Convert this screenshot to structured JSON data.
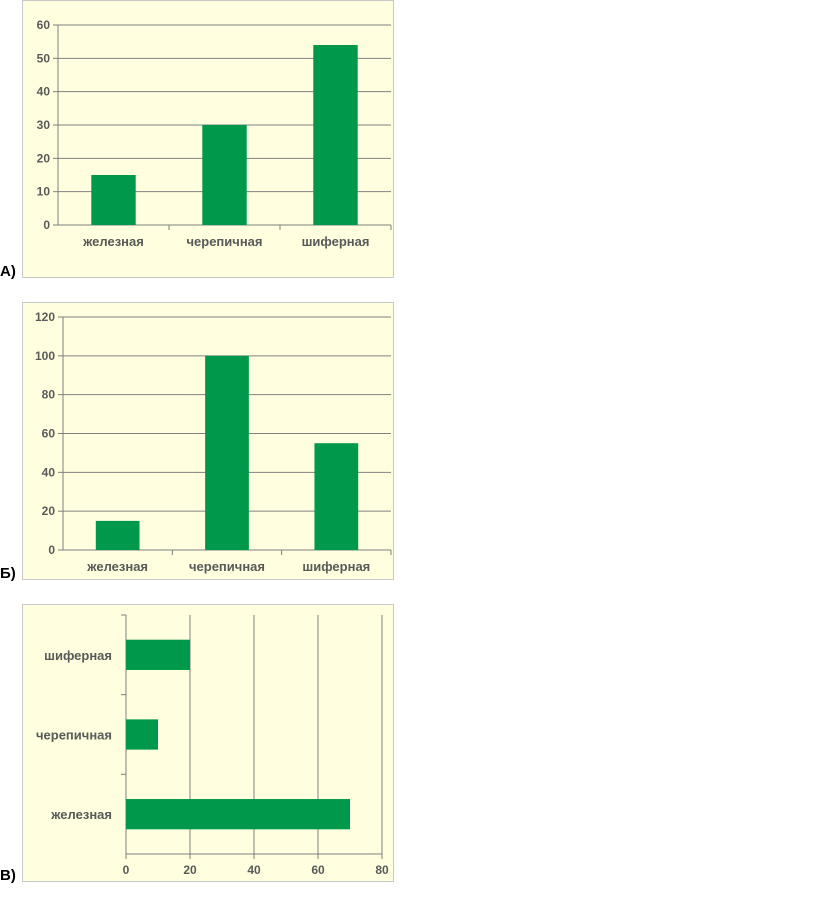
{
  "panels": [
    {
      "label": "А)"
    },
    {
      "label": "Б)"
    },
    {
      "label": "В)"
    }
  ],
  "colors": {
    "bar": "#00994c",
    "grid": "#808080",
    "axis": "#7f7f7f",
    "text": "#595959",
    "background": "#ffffdf"
  },
  "chart_data": [
    {
      "type": "bar",
      "orientation": "vertical",
      "categories": [
        "железная",
        "черепичная",
        "шиферная"
      ],
      "values": [
        15,
        30,
        54
      ],
      "ylim": [
        0,
        60
      ],
      "yticks": [
        0,
        10,
        20,
        30,
        40,
        50,
        60
      ],
      "grid": true
    },
    {
      "type": "bar",
      "orientation": "vertical",
      "categories": [
        "железная",
        "черепичная",
        "шиферная"
      ],
      "values": [
        15,
        100,
        55
      ],
      "ylim": [
        0,
        120
      ],
      "yticks": [
        0,
        20,
        40,
        60,
        80,
        100,
        120
      ],
      "grid": true
    },
    {
      "type": "bar",
      "orientation": "horizontal",
      "categories": [
        "железная",
        "черепичная",
        "шиферная"
      ],
      "values": [
        70,
        10,
        20
      ],
      "xlim": [
        0,
        80
      ],
      "xticks": [
        0,
        20,
        40,
        60,
        80
      ],
      "grid": true
    }
  ]
}
